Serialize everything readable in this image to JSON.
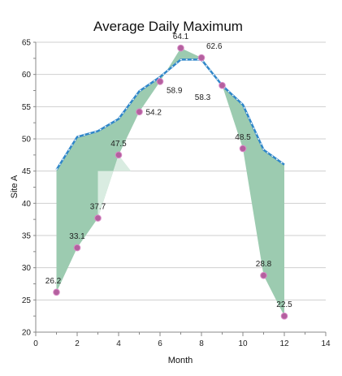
{
  "chart_data": {
    "type": "area",
    "title": "Average Daily Maximum",
    "xlabel": "Month",
    "ylabel": "Site A",
    "xlim": [
      0,
      14
    ],
    "ylim": [
      20,
      65
    ],
    "xticks": [
      0,
      2,
      4,
      6,
      8,
      10,
      12,
      14
    ],
    "yticks": [
      20,
      25,
      30,
      35,
      40,
      45,
      50,
      55,
      60,
      65
    ],
    "grid": true,
    "legend": "none",
    "colors": {
      "band_fill": "#9ccbb0",
      "band_light_fill": "#d9ece1",
      "upper_line": "#2f86c9",
      "upper_line_dash": "#ffffff",
      "points": "#b4609f",
      "points_edge": "#d98bc7"
    },
    "series": [
      {
        "style": "points",
        "x": [
          1,
          2,
          3,
          4,
          5,
          6,
          7,
          8,
          9,
          10,
          11,
          12
        ],
        "values": [
          26.2,
          33.1,
          37.7,
          47.5,
          54.2,
          58.9,
          64.1,
          62.6,
          58.3,
          48.5,
          28.8,
          22.5
        ],
        "labels": [
          "26.2",
          "33.1",
          "37.7",
          "47.5",
          "54.2",
          "58.9",
          "64.1",
          "62.6",
          "58.3",
          "48.5",
          "28.8",
          "22.5"
        ]
      },
      {
        "style": "dashed-line",
        "x": [
          1,
          2,
          3,
          4,
          5,
          6,
          7,
          8,
          9,
          10,
          11,
          12
        ],
        "values": [
          45.2,
          50.3,
          51.2,
          53.1,
          57.4,
          59.6,
          62.3,
          62.3,
          58.3,
          55.3,
          48.3,
          46.0
        ]
      }
    ]
  }
}
